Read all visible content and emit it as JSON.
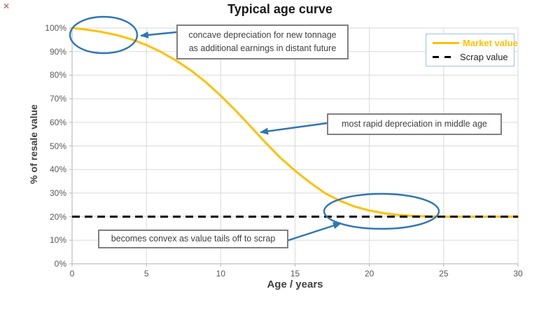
{
  "title": "Typical age curve",
  "decorations": {
    "red_x_glyph": "✕"
  },
  "axes": {
    "x": {
      "label": "Age / years",
      "ticks": [
        "0",
        "5",
        "10",
        "15",
        "20",
        "25",
        "30"
      ]
    },
    "y": {
      "label": "% of resale value",
      "ticks": [
        "0%",
        "10%",
        "20%",
        "30%",
        "40%",
        "50%",
        "60%",
        "70%",
        "80%",
        "90%",
        "100%"
      ]
    }
  },
  "legend": {
    "items": [
      {
        "label": "Market value",
        "color": "#FFC000",
        "style": "solid"
      },
      {
        "label": "Scrap value",
        "color": "#000000",
        "style": "dashed"
      }
    ]
  },
  "annotations": {
    "concave": {
      "line1": "concave depreciation for new tonnage",
      "line2": "as additional earnings in distant future"
    },
    "rapid": {
      "text": "most rapid depreciation in middle age"
    },
    "convex": {
      "text": "becomes convex as value tails off to scrap"
    }
  },
  "colors": {
    "market": "#FFC000",
    "scrap": "#000000",
    "callout_blue": "#2E75B6",
    "gridline": "#D9D9D9",
    "axis_line": "#BFBFBF",
    "tick_text": "#595959",
    "legend_border": "#9DC3E6",
    "box_border": "#808080"
  },
  "chart_data": {
    "type": "line",
    "title": "Typical age curve",
    "xlabel": "Age / years",
    "ylabel": "% of resale value",
    "xlim": [
      0,
      30
    ],
    "ylim": [
      0,
      100
    ],
    "x_ticks": [
      0,
      5,
      10,
      15,
      20,
      25,
      30
    ],
    "y_ticks": [
      0,
      10,
      20,
      30,
      40,
      50,
      60,
      70,
      80,
      90,
      100
    ],
    "grid": true,
    "legend_position": "top-right",
    "series": [
      {
        "name": "Market value",
        "color": "#FFC000",
        "style": "solid",
        "x": [
          0,
          1,
          2,
          3,
          4,
          5,
          6,
          7,
          8,
          9,
          10,
          11,
          12,
          13,
          14,
          15,
          16,
          17,
          18,
          19,
          20,
          21,
          22,
          23,
          24,
          25,
          26,
          27,
          28,
          29,
          30
        ],
        "y": [
          100,
          99.3,
          98.3,
          97,
          95.2,
          92.8,
          89.8,
          86.2,
          82,
          77,
          71.3,
          65,
          58.3,
          51.5,
          45,
          39.5,
          34.5,
          30,
          26.8,
          24.3,
          22.6,
          21.4,
          20.7,
          20.3,
          20.1,
          20,
          20,
          20,
          20,
          20,
          20
        ]
      },
      {
        "name": "Scrap value",
        "color": "#000000",
        "style": "dashed",
        "x": [
          0,
          30
        ],
        "y": [
          20,
          20
        ]
      }
    ],
    "annotations": [
      "concave depreciation for new tonnage as additional earnings in distant future",
      "most rapid depreciation in middle age",
      "becomes convex as value tails off to scrap"
    ]
  }
}
